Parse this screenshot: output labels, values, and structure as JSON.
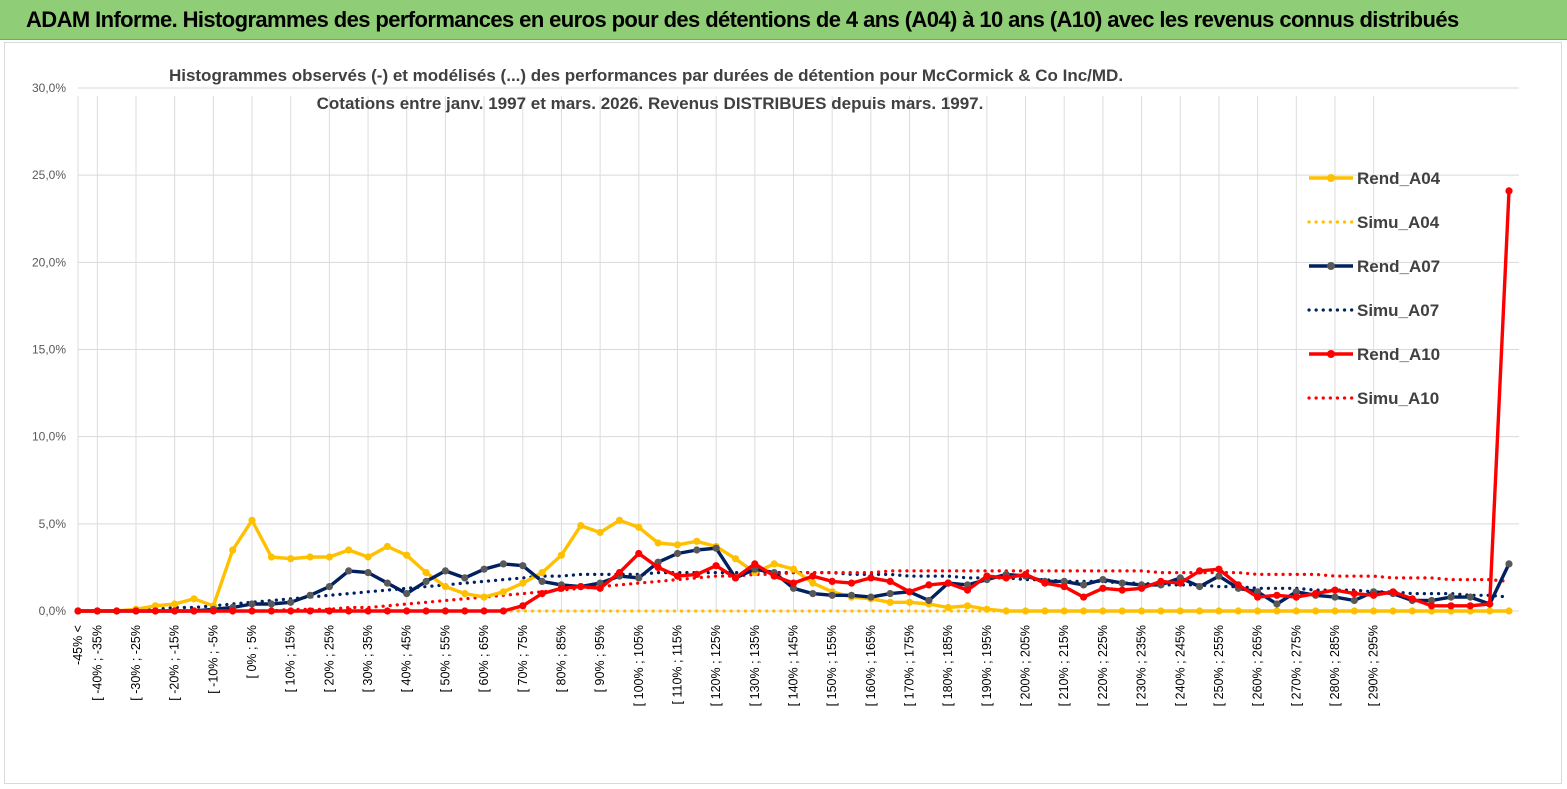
{
  "banner": {
    "title": "ADAM Informe. Histogrammes des performances en euros pour des détentions de 4 ans (A04) à 10 ans (A10) avec les revenus connus distribués"
  },
  "colors": {
    "banner_bg": "#8fce76",
    "a04": "#ffc000",
    "a07": "#002060",
    "a10": "#ff0000"
  },
  "chart_data": {
    "type": "line",
    "title_lines": [
      "Histogrammes observés (-) et modélisés (...) des performances par durées de détention pour McCormick & Co Inc/MD.",
      "Cotations entre janv. 1997 et mars. 2026.  Revenus DISTRIBUES depuis mars. 1997."
    ],
    "y_ticks": [
      "0,0%",
      "5,0%",
      "10,0%",
      "15,0%",
      "20,0%",
      "25,0%",
      "30,0%"
    ],
    "ylim": [
      0,
      30
    ],
    "x_labels": [
      "-45% <",
      "[ -40% ; -35%",
      "[ -30% ; -25%",
      "[ -20% ; -15%",
      "[ -10% ; -5%",
      "[ 0% ; 5%",
      "[ 10% ; 15%",
      "[ 20% ; 25%",
      "[ 30% ; 35%",
      "[ 40% ; 45%",
      "[ 50% ; 55%",
      "[ 60% ; 65%",
      "[ 70% ; 75%",
      "[ 80% ; 85%",
      "[ 90% ; 95%",
      "[ 100% ; 105%",
      "[ 110% ; 115%",
      "[ 120% ; 125%",
      "[ 130% ; 135%",
      "[ 140% ; 145%",
      "[ 150% ; 155%",
      "[ 160% ; 165%",
      "[ 170% ; 175%",
      "[ 180% ; 185%",
      "[ 190% ; 195%",
      "[ 200% ; 205%",
      "[ 210% ; 215%",
      "[ 220% ; 225%",
      "[ 230% ; 235%",
      "[ 240% ; 245%",
      "[ 250% ; 255%",
      "[ 260% ; 265%",
      "[ 270% ; 275%",
      "[ 280% ; 285%",
      "[ 290% ; 295%"
    ],
    "series": [
      {
        "name": "Rend_A04",
        "style": "solid",
        "color": "#ffc000",
        "values": [
          0,
          0,
          0,
          0.1,
          0.3,
          0.4,
          0.7,
          0.3,
          3.5,
          5.2,
          3.1,
          3.0,
          3.1,
          3.1,
          3.5,
          3.1,
          3.7,
          3.2,
          2.2,
          1.4,
          1.0,
          0.8,
          1.1,
          1.6,
          2.2,
          3.2,
          4.9,
          4.5,
          5.2,
          4.8,
          3.9,
          3.8,
          4.0,
          3.7,
          3.0,
          2.2,
          2.7,
          2.4,
          1.6,
          1.1,
          0.8,
          0.7,
          0.5,
          0.5,
          0.4,
          0.2,
          0.3,
          0.1,
          0,
          0,
          0,
          0,
          0,
          0,
          0,
          0,
          0,
          0,
          0,
          0,
          0,
          0,
          0,
          0,
          0,
          0,
          0,
          0,
          0,
          0,
          0,
          0,
          0,
          0,
          0
        ]
      },
      {
        "name": "Simu_A04",
        "style": "dotted",
        "color": "#ffc000",
        "values": [
          0,
          0,
          0,
          0,
          0,
          0,
          0,
          0,
          0,
          0,
          0,
          0,
          0,
          0,
          0,
          0,
          0,
          0,
          0,
          0,
          0,
          0,
          0,
          0,
          0,
          0,
          0,
          0,
          0,
          0,
          0,
          0,
          0,
          0,
          0,
          0,
          0,
          0,
          0,
          0,
          0,
          0,
          0,
          0,
          0,
          0,
          0,
          0,
          0,
          0,
          0,
          0,
          0,
          0,
          0,
          0,
          0,
          0,
          0,
          0,
          0,
          0,
          0,
          0,
          0,
          0,
          0,
          0,
          0,
          0,
          0,
          0,
          0,
          0,
          0
        ]
      },
      {
        "name": "Rend_A07",
        "style": "solid",
        "color": "#002060",
        "values": [
          0,
          0,
          0,
          0,
          0,
          0,
          0,
          0.1,
          0.2,
          0.4,
          0.4,
          0.5,
          0.9,
          1.4,
          2.3,
          2.2,
          1.6,
          1.0,
          1.7,
          2.3,
          1.9,
          2.4,
          2.7,
          2.6,
          1.7,
          1.5,
          1.4,
          1.6,
          2.0,
          1.9,
          2.8,
          3.3,
          3.5,
          3.6,
          1.9,
          2.4,
          2.2,
          1.3,
          1.0,
          0.9,
          0.9,
          0.8,
          1.0,
          1.1,
          0.6,
          1.6,
          1.5,
          1.8,
          2.1,
          2.0,
          1.7,
          1.7,
          1.5,
          1.8,
          1.6,
          1.5,
          1.5,
          1.9,
          1.4,
          2.0,
          1.3,
          1.1,
          0.4,
          1.1,
          0.9,
          0.8,
          0.6,
          1.1,
          1.0,
          0.6,
          0.6,
          0.8,
          0.8,
          0.4,
          2.7
        ]
      },
      {
        "name": "Simu_A07",
        "style": "dotted",
        "color": "#002060",
        "values": [
          0,
          0,
          0,
          0.1,
          0.1,
          0.2,
          0.2,
          0.3,
          0.4,
          0.5,
          0.6,
          0.7,
          0.8,
          0.9,
          1.0,
          1.1,
          1.2,
          1.3,
          1.4,
          1.5,
          1.6,
          1.7,
          1.8,
          1.9,
          2.0,
          2.0,
          2.1,
          2.1,
          2.1,
          2.1,
          2.2,
          2.2,
          2.2,
          2.2,
          2.2,
          2.2,
          2.2,
          2.2,
          2.2,
          2.2,
          2.1,
          2.1,
          2.1,
          2.0,
          2.0,
          2.0,
          1.9,
          1.9,
          1.9,
          1.8,
          1.8,
          1.7,
          1.7,
          1.7,
          1.6,
          1.6,
          1.5,
          1.5,
          1.5,
          1.4,
          1.4,
          1.3,
          1.3,
          1.3,
          1.2,
          1.2,
          1.2,
          1.1,
          1.1,
          1.0,
          1.0,
          1.0,
          0.9,
          0.9,
          0.8
        ]
      },
      {
        "name": "Rend_A10",
        "style": "solid",
        "color": "#ff0000",
        "values": [
          0,
          0,
          0,
          0,
          0,
          0,
          0,
          0,
          0,
          0,
          0,
          0,
          0,
          0,
          0,
          0,
          0,
          0,
          0,
          0,
          0,
          0,
          0,
          0.3,
          1.0,
          1.3,
          1.4,
          1.3,
          2.2,
          3.3,
          2.5,
          2.0,
          2.1,
          2.6,
          1.9,
          2.7,
          2.0,
          1.6,
          2.0,
          1.7,
          1.6,
          1.9,
          1.7,
          1.1,
          1.5,
          1.6,
          1.2,
          2.0,
          1.9,
          2.1,
          1.6,
          1.4,
          0.8,
          1.3,
          1.2,
          1.3,
          1.7,
          1.6,
          2.3,
          2.4,
          1.5,
          0.8,
          0.9,
          0.8,
          1.0,
          1.2,
          1.0,
          0.9,
          1.1,
          0.7,
          0.3,
          0.3,
          0.3,
          0.4,
          24.1
        ]
      },
      {
        "name": "Simu_A10",
        "style": "dotted",
        "color": "#ff0000",
        "values": [
          0,
          0,
          0,
          0,
          0,
          0,
          0,
          0,
          0,
          0,
          0,
          0.1,
          0.1,
          0.1,
          0.2,
          0.2,
          0.3,
          0.4,
          0.5,
          0.6,
          0.7,
          0.8,
          0.9,
          1.0,
          1.1,
          1.2,
          1.3,
          1.4,
          1.5,
          1.6,
          1.7,
          1.8,
          1.9,
          2.0,
          2.0,
          2.1,
          2.1,
          2.2,
          2.2,
          2.2,
          2.2,
          2.2,
          2.3,
          2.3,
          2.3,
          2.3,
          2.3,
          2.3,
          2.3,
          2.3,
          2.3,
          2.3,
          2.3,
          2.3,
          2.3,
          2.3,
          2.2,
          2.2,
          2.2,
          2.2,
          2.2,
          2.1,
          2.1,
          2.1,
          2.1,
          2.0,
          2.0,
          2.0,
          1.9,
          1.9,
          1.9,
          1.8,
          1.8,
          1.8,
          1.7
        ]
      }
    ],
    "legend": [
      "Rend_A04",
      "Simu_A04",
      "Rend_A07",
      "Simu_A07",
      "Rend_A10",
      "Simu_A10"
    ],
    "legend_position": "right"
  }
}
